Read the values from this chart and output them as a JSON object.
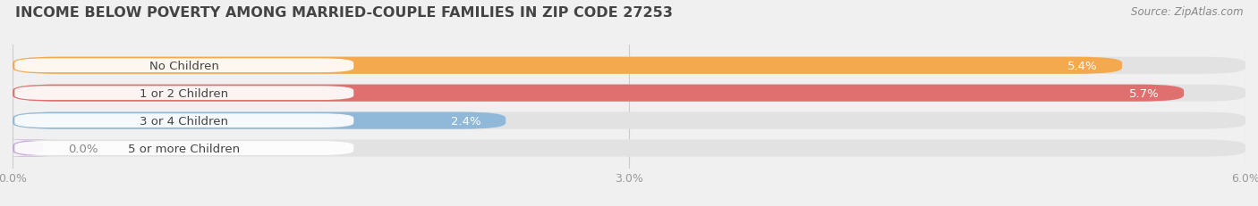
{
  "title": "INCOME BELOW POVERTY AMONG MARRIED-COUPLE FAMILIES IN ZIP CODE 27253",
  "source": "Source: ZipAtlas.com",
  "categories": [
    "No Children",
    "1 or 2 Children",
    "3 or 4 Children",
    "5 or more Children"
  ],
  "values": [
    5.4,
    5.7,
    2.4,
    0.0
  ],
  "bar_colors": [
    "#F5A94E",
    "#E07070",
    "#90B8D8",
    "#C8A8D8"
  ],
  "xlim": [
    0,
    6.0
  ],
  "xticks": [
    0.0,
    3.0,
    6.0
  ],
  "xtick_labels": [
    "0.0%",
    "3.0%",
    "6.0%"
  ],
  "value_labels": [
    "5.4%",
    "5.7%",
    "2.4%",
    "0.0%"
  ],
  "bar_height": 0.62,
  "figsize": [
    14.06,
    2.32
  ],
  "dpi": 100,
  "title_fontsize": 11.5,
  "source_fontsize": 8.5,
  "label_fontsize": 9.5,
  "value_fontsize": 9.5,
  "tick_fontsize": 9,
  "bg_color": "#F0F0F0",
  "bar_bg_color": "#E2E2E2",
  "label_bg_color": "#FFFFFF",
  "label_text_color": "#444444",
  "value_text_color": "#FFFFFF",
  "grid_color": "#CCCCCC",
  "tick_color": "#999999",
  "title_color": "#444444",
  "source_color": "#888888"
}
